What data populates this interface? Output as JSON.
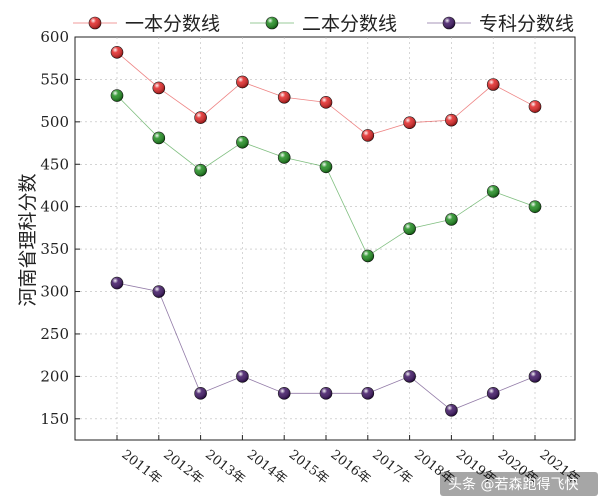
{
  "chart_data": {
    "type": "line",
    "categories": [
      "2011年",
      "2012年",
      "2013年",
      "2014年",
      "2015年",
      "2016年",
      "2017年",
      "2018年",
      "2019年",
      "2020年",
      "2021年"
    ],
    "series": [
      {
        "name": "一本分数线",
        "color": "#e02020",
        "values": [
          582,
          540,
          505,
          547,
          529,
          523,
          484,
          499,
          502,
          544,
          518
        ]
      },
      {
        "name": "二本分数线",
        "color": "#1a8a1a",
        "values": [
          531,
          481,
          443,
          476,
          458,
          447,
          342,
          374,
          385,
          418,
          400
        ]
      },
      {
        "name": "专科分数线",
        "color": "#3a1060",
        "values": [
          310,
          300,
          180,
          200,
          180,
          180,
          180,
          200,
          160,
          180,
          200
        ]
      }
    ],
    "ylabel": "河南省理科分数",
    "xlabel": "",
    "ylim": [
      125,
      600
    ],
    "yticks": [
      150,
      200,
      250,
      300,
      350,
      400,
      450,
      500,
      550,
      600
    ],
    "grid": true,
    "legend_position": "top"
  },
  "watermark": "头条 @若森跑得飞快"
}
